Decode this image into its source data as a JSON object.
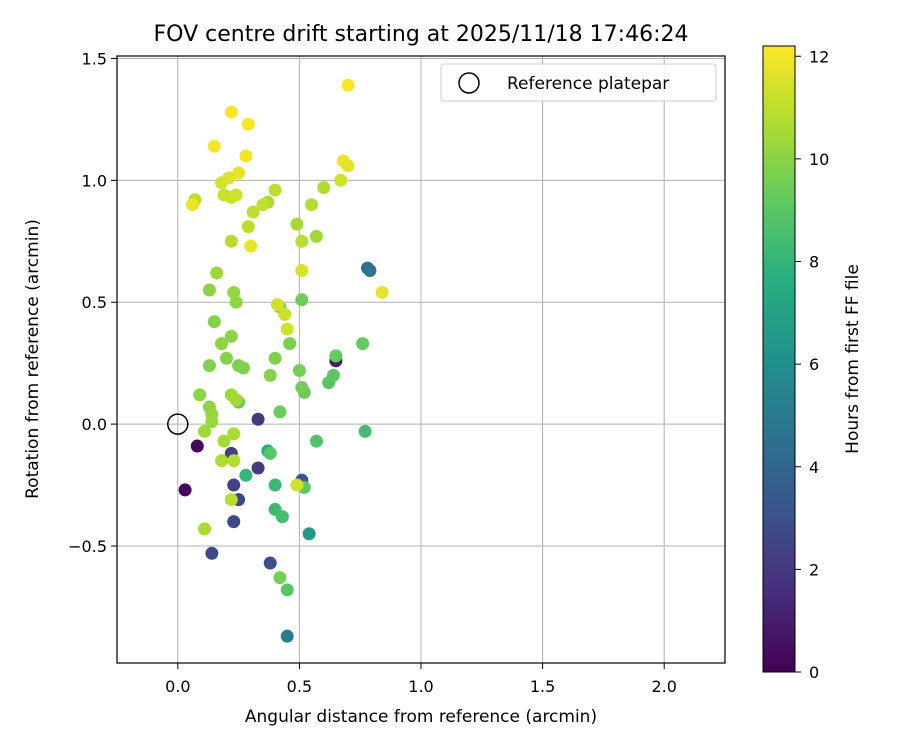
{
  "chart_data": {
    "type": "scatter",
    "title": "FOV centre drift starting at 2025/11/18 17:46:24",
    "xlabel": "Angular distance from reference (arcmin)",
    "ylabel": "Rotation from reference (arcmin)",
    "xlim": [
      -0.25,
      2.25
    ],
    "ylim": [
      -0.98,
      1.51
    ],
    "x_ticks": [
      0.0,
      0.5,
      1.0,
      1.5,
      2.0
    ],
    "x_tick_labels": [
      "0.0",
      "0.5",
      "1.0",
      "1.5",
      "2.0"
    ],
    "y_ticks": [
      -0.5,
      0.0,
      0.5,
      1.0,
      1.5
    ],
    "y_tick_labels": [
      "−0.5",
      "0.0",
      "0.5",
      "1.0",
      "1.5"
    ],
    "grid": true,
    "legend": {
      "label": "Reference platepar",
      "position": "top-right"
    },
    "reference_point": {
      "x": 0.0,
      "y": 0.0
    },
    "colorbar": {
      "label": "Hours from first FF file",
      "min": 0,
      "max": 12.2,
      "ticks": [
        0,
        2,
        4,
        6,
        8,
        10,
        12
      ],
      "tick_labels": [
        "0",
        "2",
        "4",
        "6",
        "8",
        "10",
        "12"
      ],
      "colormap": "viridis"
    },
    "points": [
      {
        "x": 0.08,
        "y": -0.09,
        "h": 0.2
      },
      {
        "x": 0.03,
        "y": -0.27,
        "h": 0.1
      },
      {
        "x": 0.65,
        "y": 0.26,
        "h": 1.0
      },
      {
        "x": 0.33,
        "y": 0.02,
        "h": 2.0
      },
      {
        "x": 0.33,
        "y": -0.18,
        "h": 2.2
      },
      {
        "x": 0.22,
        "y": -0.12,
        "h": 2.3
      },
      {
        "x": 0.23,
        "y": -0.25,
        "h": 2.4
      },
      {
        "x": 0.25,
        "y": -0.31,
        "h": 2.5
      },
      {
        "x": 0.23,
        "y": -0.4,
        "h": 2.6
      },
      {
        "x": 0.14,
        "y": -0.53,
        "h": 2.8
      },
      {
        "x": 0.38,
        "y": -0.57,
        "h": 2.9
      },
      {
        "x": 0.51,
        "y": -0.23,
        "h": 3.2
      },
      {
        "x": 0.78,
        "y": 0.64,
        "h": 4.5
      },
      {
        "x": 0.79,
        "y": 0.63,
        "h": 4.7
      },
      {
        "x": 0.45,
        "y": -0.87,
        "h": 5.0
      },
      {
        "x": 0.54,
        "y": -0.45,
        "h": 6.5
      },
      {
        "x": 0.37,
        "y": -0.11,
        "h": 7.5
      },
      {
        "x": 0.28,
        "y": -0.21,
        "h": 8.0
      },
      {
        "x": 0.4,
        "y": -0.25,
        "h": 8.2
      },
      {
        "x": 0.4,
        "y": -0.35,
        "h": 8.3
      },
      {
        "x": 0.43,
        "y": -0.38,
        "h": 8.5
      },
      {
        "x": 0.77,
        "y": -0.03,
        "h": 8.4
      },
      {
        "x": 0.57,
        "y": -0.07,
        "h": 8.8
      },
      {
        "x": 0.38,
        "y": -0.12,
        "h": 8.9
      },
      {
        "x": 0.52,
        "y": -0.26,
        "h": 9.1
      },
      {
        "x": 0.45,
        "y": -0.68,
        "h": 9.0
      },
      {
        "x": 0.42,
        "y": -0.63,
        "h": 9.6
      },
      {
        "x": 0.25,
        "y": 0.09,
        "h": 9.3
      },
      {
        "x": 0.42,
        "y": 0.05,
        "h": 9.4
      },
      {
        "x": 0.62,
        "y": 0.17,
        "h": 9.0
      },
      {
        "x": 0.64,
        "y": 0.2,
        "h": 9.1
      },
      {
        "x": 0.65,
        "y": 0.28,
        "h": 9.3
      },
      {
        "x": 0.76,
        "y": 0.33,
        "h": 9.2
      },
      {
        "x": 0.52,
        "y": 0.13,
        "h": 9.4
      },
      {
        "x": 0.51,
        "y": 0.15,
        "h": 9.5
      },
      {
        "x": 0.5,
        "y": 0.22,
        "h": 9.6
      },
      {
        "x": 0.46,
        "y": 0.33,
        "h": 9.7
      },
      {
        "x": 0.4,
        "y": 0.27,
        "h": 9.8
      },
      {
        "x": 0.38,
        "y": 0.2,
        "h": 9.9
      },
      {
        "x": 0.51,
        "y": 0.51,
        "h": 9.5
      },
      {
        "x": 0.42,
        "y": 0.48,
        "h": 9.6
      },
      {
        "x": 0.25,
        "y": 0.24,
        "h": 9.7
      },
      {
        "x": 0.27,
        "y": 0.23,
        "h": 9.8
      },
      {
        "x": 0.2,
        "y": 0.27,
        "h": 9.9
      },
      {
        "x": 0.22,
        "y": 0.36,
        "h": 10.0
      },
      {
        "x": 0.18,
        "y": 0.33,
        "h": 10.1
      },
      {
        "x": 0.13,
        "y": 0.24,
        "h": 9.8
      },
      {
        "x": 0.15,
        "y": 0.42,
        "h": 9.9
      },
      {
        "x": 0.13,
        "y": 0.55,
        "h": 10.0
      },
      {
        "x": 0.24,
        "y": 0.5,
        "h": 10.1
      },
      {
        "x": 0.23,
        "y": 0.54,
        "h": 10.2
      },
      {
        "x": 0.16,
        "y": 0.62,
        "h": 10.3
      },
      {
        "x": 0.09,
        "y": 0.12,
        "h": 10.0
      },
      {
        "x": 0.13,
        "y": 0.07,
        "h": 10.1
      },
      {
        "x": 0.14,
        "y": 0.04,
        "h": 10.2
      },
      {
        "x": 0.14,
        "y": 0.01,
        "h": 10.3
      },
      {
        "x": 0.22,
        "y": 0.12,
        "h": 10.4
      },
      {
        "x": 0.24,
        "y": 0.1,
        "h": 10.5
      },
      {
        "x": 0.11,
        "y": -0.03,
        "h": 10.4
      },
      {
        "x": 0.19,
        "y": -0.07,
        "h": 10.5
      },
      {
        "x": 0.23,
        "y": -0.04,
        "h": 10.6
      },
      {
        "x": 0.18,
        "y": -0.15,
        "h": 10.7
      },
      {
        "x": 0.23,
        "y": -0.15,
        "h": 10.8
      },
      {
        "x": 0.22,
        "y": -0.31,
        "h": 10.9
      },
      {
        "x": 0.11,
        "y": -0.43,
        "h": 10.6
      },
      {
        "x": 0.49,
        "y": -0.25,
        "h": 11.3
      },
      {
        "x": 0.57,
        "y": 0.77,
        "h": 10.4
      },
      {
        "x": 0.49,
        "y": 0.82,
        "h": 10.5
      },
      {
        "x": 0.37,
        "y": 0.91,
        "h": 10.6
      },
      {
        "x": 0.6,
        "y": 0.97,
        "h": 10.7
      },
      {
        "x": 0.55,
        "y": 0.9,
        "h": 10.8
      },
      {
        "x": 0.51,
        "y": 0.75,
        "h": 10.9
      },
      {
        "x": 0.4,
        "y": 0.96,
        "h": 11.0
      },
      {
        "x": 0.44,
        "y": 0.45,
        "h": 11.2
      },
      {
        "x": 0.45,
        "y": 0.39,
        "h": 11.3
      },
      {
        "x": 0.41,
        "y": 0.49,
        "h": 11.4
      },
      {
        "x": 0.51,
        "y": 0.63,
        "h": 11.5
      },
      {
        "x": 0.22,
        "y": 0.75,
        "h": 10.8
      },
      {
        "x": 0.29,
        "y": 0.81,
        "h": 10.9
      },
      {
        "x": 0.3,
        "y": 0.73,
        "h": 11.8
      },
      {
        "x": 0.31,
        "y": 0.87,
        "h": 11.0
      },
      {
        "x": 0.35,
        "y": 0.9,
        "h": 11.1
      },
      {
        "x": 0.22,
        "y": 0.93,
        "h": 11.2
      },
      {
        "x": 0.24,
        "y": 0.94,
        "h": 11.3
      },
      {
        "x": 0.19,
        "y": 0.94,
        "h": 11.2
      },
      {
        "x": 0.18,
        "y": 0.99,
        "h": 11.4
      },
      {
        "x": 0.21,
        "y": 1.01,
        "h": 11.6
      },
      {
        "x": 0.25,
        "y": 1.03,
        "h": 11.8
      },
      {
        "x": 0.07,
        "y": 0.92,
        "h": 11.0
      },
      {
        "x": 0.06,
        "y": 0.9,
        "h": 11.9
      },
      {
        "x": 0.15,
        "y": 1.14,
        "h": 12.0
      },
      {
        "x": 0.28,
        "y": 1.1,
        "h": 12.0
      },
      {
        "x": 0.22,
        "y": 1.28,
        "h": 12.1
      },
      {
        "x": 0.29,
        "y": 1.23,
        "h": 12.1
      },
      {
        "x": 0.68,
        "y": 1.08,
        "h": 11.9
      },
      {
        "x": 0.7,
        "y": 1.06,
        "h": 11.7
      },
      {
        "x": 0.67,
        "y": 1.0,
        "h": 11.3
      },
      {
        "x": 0.7,
        "y": 1.39,
        "h": 12.1
      },
      {
        "x": 0.84,
        "y": 0.54,
        "h": 11.7
      }
    ]
  }
}
